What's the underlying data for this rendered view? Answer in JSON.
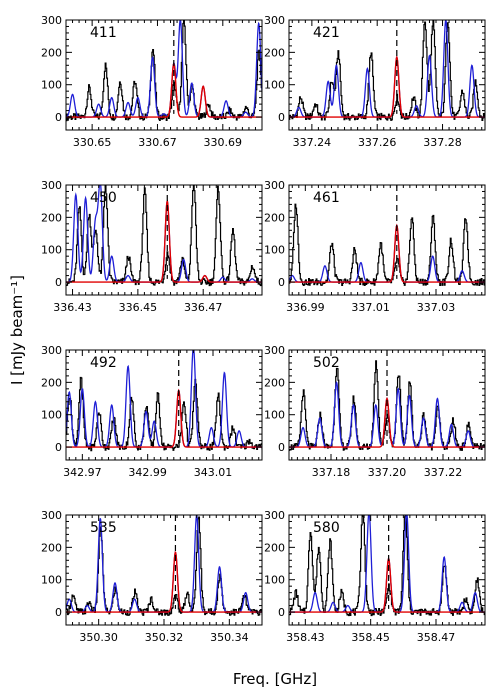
{
  "chart_data": {
    "type": "line",
    "xlabel": "Freq. [GHz]",
    "ylabel": "I [mJy beam⁻¹]",
    "ylim": [
      -40,
      300
    ],
    "yticks": [
      0,
      100,
      200,
      300
    ],
    "colors": {
      "observed": "#000000",
      "model_total": "#1f1fd6",
      "model_line": "#e00000",
      "marker": "#000000"
    },
    "panels": [
      {
        "label": "411",
        "xlim": [
          330.642,
          330.702
        ],
        "xticks": [
          330.65,
          330.67,
          330.69
        ],
        "xtick_labels": [
          "330.65",
          "330.67",
          "330.69"
        ],
        "marker": 330.675,
        "red_peaks": [
          {
            "x": 330.675,
            "h": 165
          },
          {
            "x": 330.684,
            "h": 95
          }
        ],
        "blue_peaks": [
          {
            "x": 330.644,
            "h": 70
          },
          {
            "x": 330.652,
            "h": 40
          },
          {
            "x": 330.656,
            "h": 60
          },
          {
            "x": 330.661,
            "h": 45
          },
          {
            "x": 330.664,
            "h": 60
          },
          {
            "x": 330.6685,
            "h": 185
          },
          {
            "x": 330.672,
            "h": 10
          },
          {
            "x": 330.675,
            "h": 165
          },
          {
            "x": 330.677,
            "h": 300
          },
          {
            "x": 330.6805,
            "h": 105
          },
          {
            "x": 330.684,
            "h": 95
          },
          {
            "x": 330.691,
            "h": 50
          },
          {
            "x": 330.697,
            "h": 15
          },
          {
            "x": 330.701,
            "h": 290
          }
        ],
        "black_peaks": [
          {
            "x": 330.649,
            "h": 90
          },
          {
            "x": 330.654,
            "h": 160
          },
          {
            "x": 330.6585,
            "h": 110
          },
          {
            "x": 330.663,
            "h": 110
          },
          {
            "x": 330.6685,
            "h": 210
          },
          {
            "x": 330.675,
            "h": 100
          },
          {
            "x": 330.678,
            "h": 300
          },
          {
            "x": 330.6805,
            "h": 95
          },
          {
            "x": 330.6855,
            "h": 40
          },
          {
            "x": 330.692,
            "h": 20
          },
          {
            "x": 330.697,
            "h": 30
          },
          {
            "x": 330.701,
            "h": 200
          }
        ]
      },
      {
        "label": "421",
        "xlim": [
          337.233,
          337.293
        ],
        "xticks": [
          337.24,
          337.26,
          337.28
        ],
        "xtick_labels": [
          "337.24",
          "337.26",
          "337.28"
        ],
        "marker": 337.266,
        "red_peaks": [
          {
            "x": 337.266,
            "h": 185
          }
        ],
        "blue_peaks": [
          {
            "x": 337.236,
            "h": 30
          },
          {
            "x": 337.245,
            "h": 110
          },
          {
            "x": 337.2475,
            "h": 160
          },
          {
            "x": 337.257,
            "h": 150
          },
          {
            "x": 337.266,
            "h": 185
          },
          {
            "x": 337.272,
            "h": 35
          },
          {
            "x": 337.276,
            "h": 190
          },
          {
            "x": 337.281,
            "h": 300
          },
          {
            "x": 337.289,
            "h": 160
          }
        ],
        "black_peaks": [
          {
            "x": 337.2365,
            "h": 60
          },
          {
            "x": 337.241,
            "h": 40
          },
          {
            "x": 337.246,
            "h": 110
          },
          {
            "x": 337.248,
            "h": 200
          },
          {
            "x": 337.258,
            "h": 200
          },
          {
            "x": 337.266,
            "h": 60
          },
          {
            "x": 337.271,
            "h": 60
          },
          {
            "x": 337.2745,
            "h": 300
          },
          {
            "x": 337.277,
            "h": 300
          },
          {
            "x": 337.2815,
            "h": 300
          },
          {
            "x": 337.286,
            "h": 80
          },
          {
            "x": 337.29,
            "h": 110
          }
        ]
      },
      {
        "label": "450",
        "xlim": [
          336.428,
          336.488
        ],
        "xticks": [
          336.43,
          336.45,
          336.47
        ],
        "xtick_labels": [
          "336.43",
          "336.45",
          "336.47"
        ],
        "marker": 336.459,
        "red_peaks": [
          {
            "x": 336.459,
            "h": 250
          },
          {
            "x": 336.4705,
            "h": 20
          }
        ],
        "blue_peaks": [
          {
            "x": 336.431,
            "h": 270
          },
          {
            "x": 336.434,
            "h": 260
          },
          {
            "x": 336.437,
            "h": 180
          },
          {
            "x": 336.4385,
            "h": 300
          },
          {
            "x": 336.442,
            "h": 80
          },
          {
            "x": 336.447,
            "h": 20
          },
          {
            "x": 336.459,
            "h": 250
          },
          {
            "x": 336.464,
            "h": 70
          },
          {
            "x": 336.4705,
            "h": 20
          },
          {
            "x": 336.476,
            "h": 15
          },
          {
            "x": 336.485,
            "h": 10
          }
        ],
        "black_peaks": [
          {
            "x": 336.432,
            "h": 230
          },
          {
            "x": 336.435,
            "h": 210
          },
          {
            "x": 336.437,
            "h": 160
          },
          {
            "x": 336.44,
            "h": 300
          },
          {
            "x": 336.447,
            "h": 80
          },
          {
            "x": 336.452,
            "h": 280
          },
          {
            "x": 336.459,
            "h": 90
          },
          {
            "x": 336.4635,
            "h": 70
          },
          {
            "x": 336.467,
            "h": 310
          },
          {
            "x": 336.4745,
            "h": 290
          },
          {
            "x": 336.479,
            "h": 160
          },
          {
            "x": 336.485,
            "h": 50
          }
        ]
      },
      {
        "label": "461",
        "xlim": [
          336.985,
          337.045
        ],
        "xticks": [
          336.99,
          337.01,
          337.03
        ],
        "xtick_labels": [
          "336.99",
          "337.01",
          "337.03"
        ],
        "marker": 337.018,
        "red_peaks": [
          {
            "x": 337.018,
            "h": 175
          }
        ],
        "blue_peaks": [
          {
            "x": 336.986,
            "h": 20
          },
          {
            "x": 336.996,
            "h": 50
          },
          {
            "x": 337.007,
            "h": 60
          },
          {
            "x": 337.018,
            "h": 175
          },
          {
            "x": 337.029,
            "h": 80
          },
          {
            "x": 337.038,
            "h": 35
          }
        ],
        "black_peaks": [
          {
            "x": 336.987,
            "h": 240
          },
          {
            "x": 336.998,
            "h": 120
          },
          {
            "x": 337.005,
            "h": 100
          },
          {
            "x": 337.013,
            "h": 120
          },
          {
            "x": 337.018,
            "h": 70
          },
          {
            "x": 337.0225,
            "h": 200
          },
          {
            "x": 337.029,
            "h": 200
          },
          {
            "x": 337.0345,
            "h": 130
          },
          {
            "x": 337.039,
            "h": 200
          }
        ]
      },
      {
        "label": "492",
        "xlim": [
          342.965,
          343.025
        ],
        "xticks": [
          342.97,
          342.99,
          343.01
        ],
        "xtick_labels": [
          "342.97",
          "342.99",
          "343.01"
        ],
        "marker": 342.9995,
        "red_peaks": [
          {
            "x": 342.9995,
            "h": 175
          }
        ],
        "blue_peaks": [
          {
            "x": 342.966,
            "h": 170
          },
          {
            "x": 342.97,
            "h": 180
          },
          {
            "x": 342.974,
            "h": 140
          },
          {
            "x": 342.979,
            "h": 130
          },
          {
            "x": 342.984,
            "h": 250
          },
          {
            "x": 342.9895,
            "h": 110
          },
          {
            "x": 342.992,
            "h": 80
          },
          {
            "x": 342.9995,
            "h": 175
          },
          {
            "x": 343.004,
            "h": 310
          },
          {
            "x": 343.0095,
            "h": 60
          },
          {
            "x": 343.0135,
            "h": 230
          },
          {
            "x": 343.018,
            "h": 50
          }
        ],
        "black_peaks": [
          {
            "x": 342.966,
            "h": 160
          },
          {
            "x": 342.9695,
            "h": 210
          },
          {
            "x": 342.975,
            "h": 110
          },
          {
            "x": 342.9795,
            "h": 90
          },
          {
            "x": 342.985,
            "h": 150
          },
          {
            "x": 342.9895,
            "h": 130
          },
          {
            "x": 342.993,
            "h": 160
          },
          {
            "x": 343.001,
            "h": 140
          },
          {
            "x": 343.0045,
            "h": 200
          },
          {
            "x": 343.0115,
            "h": 160
          },
          {
            "x": 343.016,
            "h": 60
          },
          {
            "x": 343.021,
            "h": 20
          }
        ]
      },
      {
        "label": "502",
        "xlim": [
          337.165,
          337.235
        ],
        "xticks": [
          337.18,
          337.2,
          337.22
        ],
        "xtick_labels": [
          "337.18",
          "337.20",
          "337.22"
        ],
        "marker": 337.2,
        "red_peaks": [
          {
            "x": 337.2,
            "h": 150
          }
        ],
        "blue_peaks": [
          {
            "x": 337.17,
            "h": 60
          },
          {
            "x": 337.176,
            "h": 90
          },
          {
            "x": 337.182,
            "h": 200
          },
          {
            "x": 337.188,
            "h": 130
          },
          {
            "x": 337.196,
            "h": 130
          },
          {
            "x": 337.2,
            "h": 150
          },
          {
            "x": 337.204,
            "h": 180
          },
          {
            "x": 337.208,
            "h": 160
          },
          {
            "x": 337.213,
            "h": 90
          },
          {
            "x": 337.218,
            "h": 150
          },
          {
            "x": 337.223,
            "h": 70
          },
          {
            "x": 337.229,
            "h": 50
          }
        ],
        "black_peaks": [
          {
            "x": 337.17,
            "h": 170
          },
          {
            "x": 337.176,
            "h": 100
          },
          {
            "x": 337.182,
            "h": 250
          },
          {
            "x": 337.188,
            "h": 150
          },
          {
            "x": 337.196,
            "h": 260
          },
          {
            "x": 337.2,
            "h": 100
          },
          {
            "x": 337.204,
            "h": 230
          },
          {
            "x": 337.208,
            "h": 200
          },
          {
            "x": 337.213,
            "h": 100
          },
          {
            "x": 337.218,
            "h": 130
          },
          {
            "x": 337.2235,
            "h": 80
          },
          {
            "x": 337.229,
            "h": 70
          }
        ]
      },
      {
        "label": "535",
        "xlim": [
          350.29,
          350.35
        ],
        "xticks": [
          350.3,
          350.32,
          350.34
        ],
        "xtick_labels": [
          "350.30",
          "350.32",
          "350.34"
        ],
        "marker": 350.3235,
        "red_peaks": [
          {
            "x": 350.3235,
            "h": 185
          }
        ],
        "blue_peaks": [
          {
            "x": 350.291,
            "h": 40
          },
          {
            "x": 350.2965,
            "h": 20
          },
          {
            "x": 350.3005,
            "h": 290
          },
          {
            "x": 350.305,
            "h": 90
          },
          {
            "x": 350.311,
            "h": 40
          },
          {
            "x": 350.3235,
            "h": 185
          },
          {
            "x": 350.33,
            "h": 300
          },
          {
            "x": 350.337,
            "h": 140
          },
          {
            "x": 350.345,
            "h": 60
          }
        ],
        "black_peaks": [
          {
            "x": 350.292,
            "h": 50
          },
          {
            "x": 350.297,
            "h": 30
          },
          {
            "x": 350.3005,
            "h": 260
          },
          {
            "x": 350.305,
            "h": 70
          },
          {
            "x": 350.311,
            "h": 60
          },
          {
            "x": 350.316,
            "h": 40
          },
          {
            "x": 350.3235,
            "h": 50
          },
          {
            "x": 350.327,
            "h": 60
          },
          {
            "x": 350.3305,
            "h": 290
          },
          {
            "x": 350.337,
            "h": 110
          },
          {
            "x": 350.3445,
            "h": 50
          }
        ]
      },
      {
        "label": "580",
        "xlim": [
          358.425,
          358.485
        ],
        "xticks": [
          358.43,
          358.45,
          358.47
        ],
        "xtick_labels": [
          "358.43",
          "358.45",
          "358.47"
        ],
        "marker": 358.4555,
        "red_peaks": [
          {
            "x": 358.4555,
            "h": 165
          }
        ],
        "blue_peaks": [
          {
            "x": 358.433,
            "h": 60
          },
          {
            "x": 358.4385,
            "h": 30
          },
          {
            "x": 358.443,
            "h": 20
          },
          {
            "x": 358.4495,
            "h": 310
          },
          {
            "x": 358.4555,
            "h": 165
          },
          {
            "x": 358.461,
            "h": 310
          },
          {
            "x": 358.4725,
            "h": 170
          },
          {
            "x": 358.478,
            "h": 30
          },
          {
            "x": 358.482,
            "h": 60
          }
        ],
        "black_peaks": [
          {
            "x": 358.427,
            "h": 60
          },
          {
            "x": 358.4315,
            "h": 250
          },
          {
            "x": 358.434,
            "h": 200
          },
          {
            "x": 358.4375,
            "h": 220
          },
          {
            "x": 358.441,
            "h": 60
          },
          {
            "x": 358.4475,
            "h": 310
          },
          {
            "x": 358.4555,
            "h": 80
          },
          {
            "x": 358.4605,
            "h": 310
          },
          {
            "x": 358.4725,
            "h": 150
          },
          {
            "x": 358.479,
            "h": 40
          },
          {
            "x": 358.4825,
            "h": 100
          }
        ]
      }
    ]
  }
}
